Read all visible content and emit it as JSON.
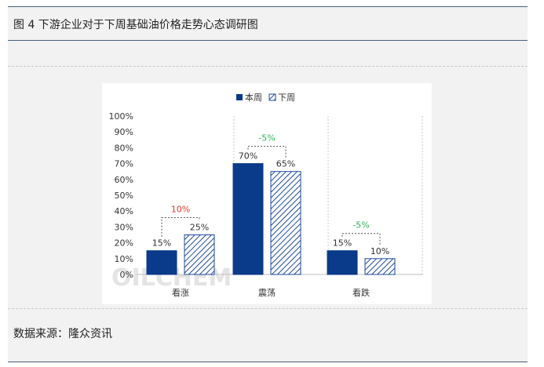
{
  "figure": {
    "title": "图 4 下游企业对于下周基础油价格走势心态调研图",
    "source": "数据来源：隆众资讯",
    "watermark": "OILCHEM"
  },
  "colors": {
    "this_week": "#0a3a8a",
    "next_week_hatch": "#1e4a9a",
    "up_change": "#e03a2a",
    "down_change": "#2db55d"
  },
  "chart_data": {
    "type": "bar",
    "categories": [
      "看涨",
      "震荡",
      "看跌"
    ],
    "series": [
      {
        "name": "本周",
        "values": [
          15,
          70,
          15
        ],
        "labels": [
          "15%",
          "70%",
          "15%"
        ]
      },
      {
        "name": "下周",
        "values": [
          25,
          65,
          10
        ],
        "labels": [
          "25%",
          "65%",
          "10%"
        ]
      }
    ],
    "ylim": [
      0,
      100
    ],
    "yticks": [
      "0%",
      "10%",
      "20%",
      "30%",
      "40%",
      "50%",
      "60%",
      "70%",
      "80%",
      "90%",
      "100%"
    ],
    "changes": [
      "10%",
      "-5%",
      "-5%"
    ],
    "legend": "top",
    "grid": false
  }
}
